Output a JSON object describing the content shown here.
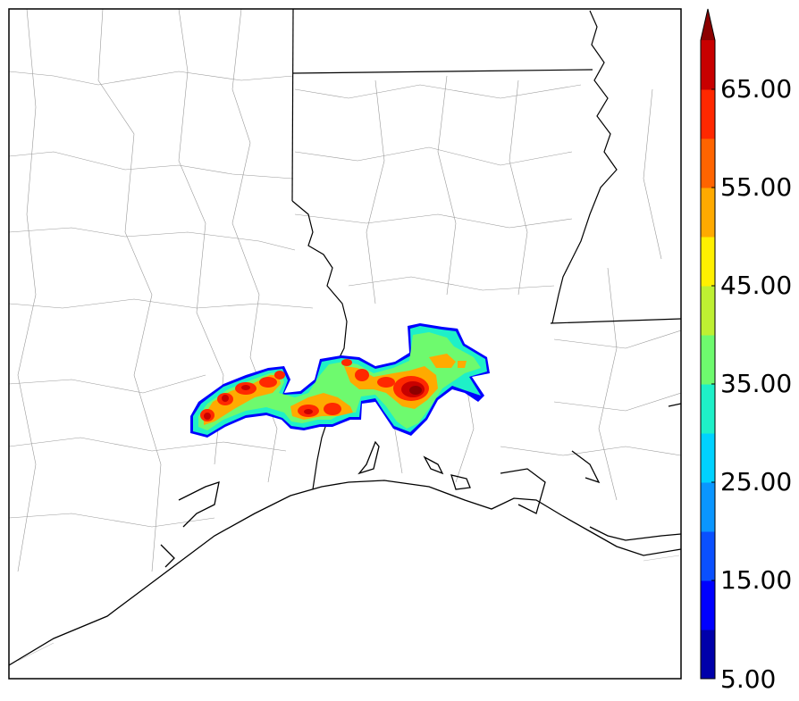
{
  "colorbar": {
    "tick_labels": [
      "5.00",
      "15.00",
      "25.00",
      "35.00",
      "45.00",
      "55.00",
      "65.00"
    ],
    "levels": [
      5,
      10,
      15,
      20,
      25,
      30,
      35,
      40,
      45,
      50,
      55,
      60,
      65,
      70
    ],
    "extend": "max",
    "colors": [
      "#0000aa",
      "#0000ff",
      "#0a50ff",
      "#0a96ff",
      "#00d2ff",
      "#1ef0c8",
      "#6efa6e",
      "#bef032",
      "#fff000",
      "#ffaa00",
      "#ff6400",
      "#ff2800",
      "#c80000",
      "#8c0000"
    ]
  },
  "map": {
    "ocean_color": "#ffffff",
    "land_color": "#ffffff",
    "boundary_color": "#000000",
    "county_color": "#999999"
  }
}
